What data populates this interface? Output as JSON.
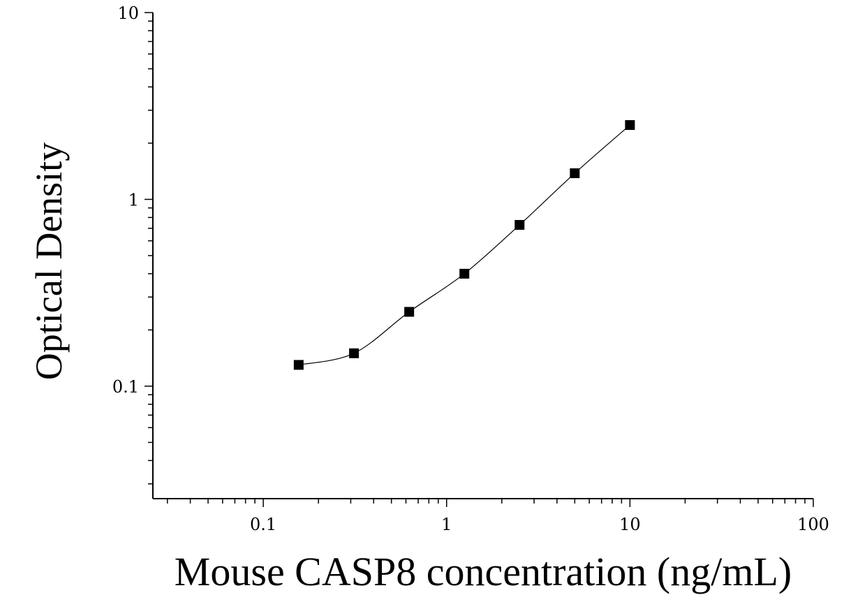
{
  "chart_data": {
    "type": "scatter",
    "title": "",
    "xlabel": "Mouse CASP8 concentration (ng/mL)",
    "ylabel": "Optical Density",
    "x_scale": "log",
    "y_scale": "log",
    "xlim": [
      0.025,
      100
    ],
    "ylim": [
      0.025,
      10
    ],
    "x_ticks": [
      {
        "value": 0.1,
        "label": "0.1"
      },
      {
        "value": 1,
        "label": "1"
      },
      {
        "value": 10,
        "label": "10"
      },
      {
        "value": 100,
        "label": "100"
      }
    ],
    "y_ticks": [
      {
        "value": 0.1,
        "label": "0.1"
      },
      {
        "value": 1,
        "label": "1"
      },
      {
        "value": 10,
        "label": "10"
      }
    ],
    "grid": false,
    "series": [
      {
        "marker": "square",
        "color": "#000000",
        "x": [
          0.156,
          0.3125,
          0.625,
          1.25,
          2.5,
          5,
          10
        ],
        "y": [
          0.13,
          0.15,
          0.25,
          0.4,
          0.73,
          1.38,
          2.5
        ]
      }
    ],
    "fit_curve": {
      "color": "#000000",
      "style": "smooth line through points"
    }
  }
}
